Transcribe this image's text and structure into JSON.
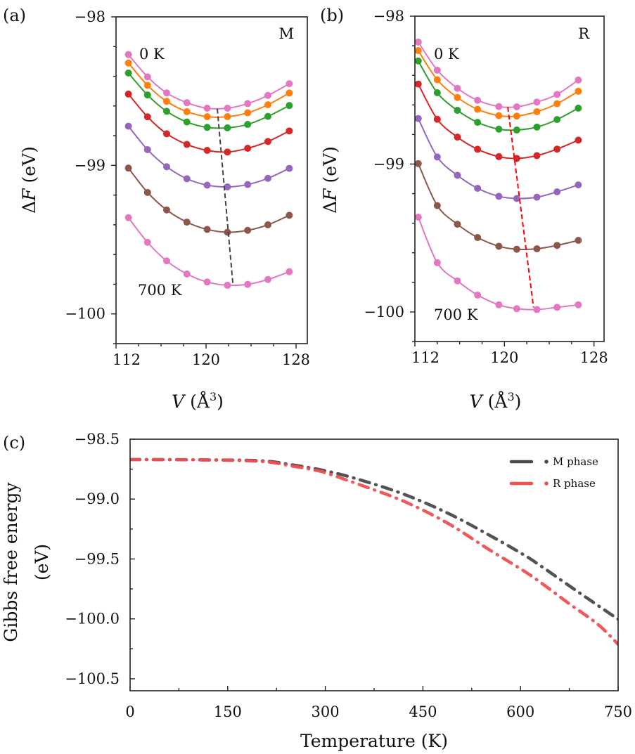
{
  "chart_data": [
    {
      "type": "line",
      "panel_label": "(a)",
      "phase_label": "M",
      "annotations": {
        "top": "0 K",
        "bottom": "700 K"
      },
      "xlabel": {
        "var": "V",
        "open": " (Å",
        "sup": "3",
        "close": ")"
      },
      "ylabel": {
        "prefix": "Δ",
        "var": "F",
        "unit": " (eV)"
      },
      "xlim": [
        112,
        129
      ],
      "ylim": [
        -100.2,
        -98
      ],
      "xticks": [
        112,
        120,
        128
      ],
      "xtick_labels": [
        "112",
        "120",
        "128"
      ],
      "xminor_step": 2,
      "yticks": [
        -98,
        -99,
        -100
      ],
      "ytick_labels": [
        "−98",
        "−99",
        "−100"
      ],
      "yminor_step": 0.2,
      "tick_direction": "out",
      "markers": true,
      "x": [
        113.1,
        114.8,
        116.5,
        118.3,
        120.1,
        121.9,
        123.7,
        125.5,
        127.4
      ],
      "series": [
        {
          "color": "#e377c2",
          "values": [
            -98.254,
            -98.404,
            -98.512,
            -98.578,
            -98.615,
            -98.615,
            -98.584,
            -98.529,
            -98.45
          ]
        },
        {
          "color": "#ff7f0e",
          "values": [
            -98.311,
            -98.461,
            -98.569,
            -98.638,
            -98.672,
            -98.672,
            -98.646,
            -98.592,
            -98.513
          ]
        },
        {
          "color": "#2ca02c",
          "values": [
            -98.378,
            -98.526,
            -98.636,
            -98.708,
            -98.744,
            -98.747,
            -98.724,
            -98.67,
            -98.597
          ]
        },
        {
          "color": "#d62728",
          "values": [
            -98.52,
            -98.673,
            -98.787,
            -98.859,
            -98.899,
            -98.91,
            -98.885,
            -98.839,
            -98.768
          ]
        },
        {
          "color": "#9467bd",
          "values": [
            -98.736,
            -98.894,
            -99.009,
            -99.09,
            -99.133,
            -99.145,
            -99.129,
            -99.087,
            -99.02
          ]
        },
        {
          "color": "#8c564b",
          "values": [
            -99.018,
            -99.182,
            -99.3,
            -99.382,
            -99.431,
            -99.45,
            -99.437,
            -99.4,
            -99.336
          ]
        },
        {
          "color": "#e377c2",
          "values": [
            -99.352,
            -99.518,
            -99.643,
            -99.731,
            -99.785,
            -99.807,
            -99.801,
            -99.768,
            -99.716
          ]
        }
      ],
      "minimum_trace": {
        "color": "#444444",
        "style": "dashed",
        "x": [
          121.0,
          122.4
        ],
        "y": [
          -98.618,
          -99.809
        ]
      }
    },
    {
      "type": "line",
      "panel_label": "(b)",
      "phase_label": "R",
      "annotations": {
        "top": "0 K",
        "bottom": "700 K"
      },
      "xlabel": {
        "var": "V",
        "open": " (Å",
        "sup": "3",
        "close": ")"
      },
      "ylabel": {
        "prefix": "Δ",
        "var": "F",
        "unit": " (eV)"
      },
      "xlim": [
        112,
        128.9
      ],
      "ylim": [
        -100.2,
        -98
      ],
      "xticks": [
        112,
        120,
        128
      ],
      "xtick_labels": [
        "112",
        "120",
        "128"
      ],
      "xminor_step": 2,
      "yticks": [
        -98,
        -99,
        -100
      ],
      "ytick_labels": [
        "−98",
        "−99",
        "−100"
      ],
      "yminor_step": 0.2,
      "tick_direction": "out",
      "markers": true,
      "x": [
        112.3,
        114.0,
        115.8,
        117.6,
        119.5,
        121.1,
        122.9,
        124.7,
        126.6
      ],
      "series": [
        {
          "color": "#e377c2",
          "values": [
            -98.175,
            -98.365,
            -98.488,
            -98.569,
            -98.611,
            -98.613,
            -98.581,
            -98.529,
            -98.432
          ]
        },
        {
          "color": "#ff7f0e",
          "values": [
            -98.233,
            -98.43,
            -98.55,
            -98.63,
            -98.673,
            -98.676,
            -98.646,
            -98.592,
            -98.508
          ]
        },
        {
          "color": "#2ca02c",
          "values": [
            -98.303,
            -98.518,
            -98.637,
            -98.718,
            -98.764,
            -98.77,
            -98.75,
            -98.699,
            -98.622
          ]
        },
        {
          "color": "#d62728",
          "values": [
            -98.459,
            -98.697,
            -98.818,
            -98.9,
            -98.95,
            -98.962,
            -98.943,
            -98.899,
            -98.838
          ]
        },
        {
          "color": "#9467bd",
          "values": [
            -98.692,
            -98.952,
            -99.076,
            -99.164,
            -99.218,
            -99.233,
            -99.224,
            -99.188,
            -99.141
          ]
        },
        {
          "color": "#8c564b",
          "values": [
            -98.997,
            -99.281,
            -99.407,
            -99.497,
            -99.556,
            -99.576,
            -99.573,
            -99.55,
            -99.516
          ]
        },
        {
          "color": "#e377c2",
          "values": [
            -99.359,
            -99.667,
            -99.79,
            -99.886,
            -99.952,
            -99.978,
            -99.984,
            -99.969,
            -99.952
          ]
        }
      ],
      "minimum_trace": {
        "color": "#ff0000",
        "style": "dashed",
        "x": [
          120.3,
          122.6
        ],
        "y": [
          -98.614,
          -99.969
        ]
      }
    },
    {
      "type": "line",
      "panel_label": "(c)",
      "xlabel": "Temperature (K)",
      "ylabel_lines": [
        "Gibbs free energy",
        "(eV)"
      ],
      "xlim": [
        0,
        750
      ],
      "ylim": [
        -100.6,
        -98.5
      ],
      "xticks": [
        0,
        150,
        300,
        450,
        600,
        750
      ],
      "xtick_labels": [
        "0",
        "150",
        "300",
        "450",
        "600",
        "750"
      ],
      "xminor_step": 75,
      "yticks": [
        -98.5,
        -99.0,
        -99.5,
        -100.0,
        -100.5
      ],
      "ytick_labels": [
        "−98.5",
        "−99.0",
        "−99.5",
        "−100.0",
        "−100.5"
      ],
      "yminor_step": 0.25,
      "tick_direction": "in",
      "legend_position": "top-right",
      "series": [
        {
          "name": "M phase",
          "color": "#4a4a4a",
          "style": "dash-dot",
          "x": [
            0,
            100,
            200,
            250,
            300,
            352,
            424,
            493,
            559,
            600,
            625,
            684,
            750
          ],
          "values": [
            -98.67,
            -98.672,
            -98.68,
            -98.715,
            -98.764,
            -98.837,
            -98.966,
            -99.13,
            -99.322,
            -99.449,
            -99.535,
            -99.758,
            -100.003
          ]
        },
        {
          "name": "R phase",
          "color": "#ef5050",
          "style": "dash-dot",
          "x": [
            0,
            100,
            200,
            250,
            280,
            300,
            352,
            421,
            488,
            550,
            615,
            674,
            719,
            750
          ],
          "values": [
            -98.67,
            -98.672,
            -98.685,
            -98.725,
            -98.754,
            -98.78,
            -98.878,
            -99.019,
            -99.201,
            -99.416,
            -99.635,
            -99.87,
            -100.046,
            -100.212
          ]
        }
      ]
    }
  ]
}
